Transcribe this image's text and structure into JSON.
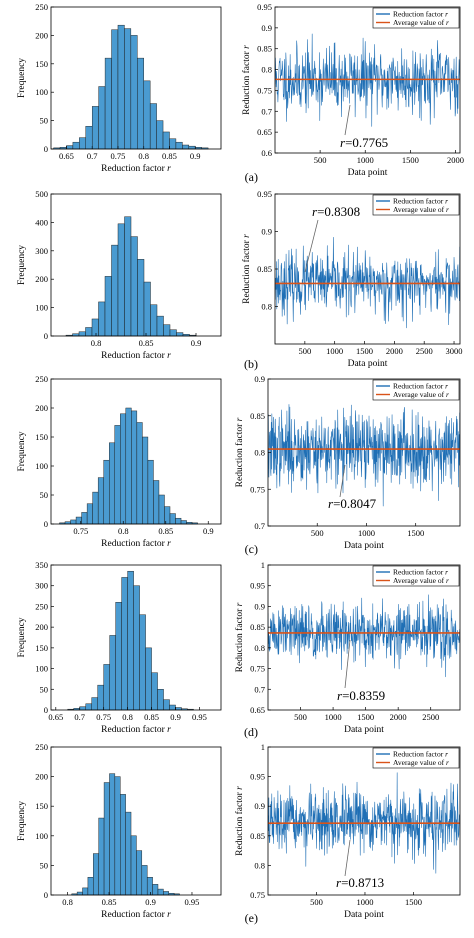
{
  "figure": {
    "hist_xlabel": "Reduction factor r",
    "hist_ylabel": "Frequency",
    "series_xlabel": "Data point",
    "series_ylabel": "Reduction factor r",
    "legend_signal": "Reduction factor r",
    "legend_average": "Average value of r",
    "colors": {
      "bar": "#4a9bd1",
      "signal": "#1f6fb5",
      "average": "#d95319"
    }
  },
  "chart_data": [
    {
      "panel": "(a)",
      "type": "bar",
      "role": "histogram",
      "xlabel": "Reduction factor r",
      "ylabel": "Frequency",
      "xlim": [
        0.62,
        0.95
      ],
      "ylim": [
        0,
        250
      ],
      "xticks": [
        "0.65",
        "0.7",
        "0.75",
        "0.8",
        "0.85",
        "0.9"
      ],
      "yticks": [
        "0",
        "50",
        "100",
        "150",
        "200",
        "250"
      ],
      "bin_start": 0.625,
      "bin_width": 0.0125,
      "values": [
        2,
        3,
        6,
        12,
        20,
        40,
        75,
        110,
        160,
        210,
        218,
        212,
        200,
        160,
        120,
        80,
        50,
        30,
        18,
        12,
        7,
        5,
        3,
        2
      ],
      "grid": false
    },
    {
      "panel": "(a)",
      "type": "line",
      "role": "series",
      "xlabel": "Data point",
      "ylabel": "Reduction factor r",
      "xlim": [
        0,
        2050
      ],
      "ylim": [
        0.6,
        0.95
      ],
      "xticks": [
        "500",
        "1000",
        "1500",
        "2000"
      ],
      "yticks": [
        "0.6",
        "0.65",
        "0.7",
        "0.75",
        "0.8",
        "0.85",
        "0.9",
        "0.95"
      ],
      "n_points": 2050,
      "mean": 0.7765,
      "spread": 0.04,
      "series": [
        {
          "name": "Reduction factor r"
        },
        {
          "name": "Average value of r",
          "value": 0.7765
        }
      ],
      "annotation": "r=0.7765",
      "legend_position": "top-right",
      "grid": false
    },
    {
      "panel": "(b)",
      "type": "bar",
      "role": "histogram",
      "xlabel": "Reduction factor r",
      "ylabel": "Frequency",
      "xlim": [
        0.755,
        0.925
      ],
      "ylim": [
        0,
        500
      ],
      "xticks": [
        "0.8",
        "0.85",
        "0.9"
      ],
      "yticks": [
        "0",
        "100",
        "200",
        "300",
        "400",
        "500"
      ],
      "bin_start": 0.77,
      "bin_width": 0.0065,
      "values": [
        3,
        8,
        15,
        30,
        60,
        120,
        210,
        320,
        395,
        420,
        350,
        270,
        190,
        110,
        70,
        40,
        22,
        12,
        6,
        3
      ],
      "grid": false
    },
    {
      "panel": "(b)",
      "type": "line",
      "role": "series",
      "xlabel": "Data point",
      "ylabel": "Reduction factor r",
      "xlim": [
        0,
        3100
      ],
      "ylim": [
        0.75,
        0.95
      ],
      "xticks": [
        "500",
        "1000",
        "1500",
        "2000",
        "2500",
        "3000"
      ],
      "yticks": [
        "0.8",
        "0.85",
        "0.9",
        "0.95"
      ],
      "n_points": 3100,
      "mean": 0.8308,
      "spread": 0.02,
      "series": [
        {
          "name": "Reduction factor r"
        },
        {
          "name": "Average value of r",
          "value": 0.8308
        }
      ],
      "annotation": "r=0.8308",
      "legend_position": "top-right",
      "grid": false
    },
    {
      "panel": "(c)",
      "type": "bar",
      "role": "histogram",
      "xlabel": "Reduction factor r",
      "ylabel": "Frequency",
      "xlim": [
        0.715,
        0.915
      ],
      "ylim": [
        0,
        250
      ],
      "xticks": [
        "0.75",
        "0.8",
        "0.85",
        "0.9"
      ],
      "yticks": [
        "0",
        "50",
        "100",
        "150",
        "200",
        "250"
      ],
      "bin_start": 0.725,
      "bin_width": 0.0065,
      "values": [
        2,
        4,
        7,
        12,
        20,
        35,
        55,
        80,
        110,
        140,
        170,
        190,
        200,
        195,
        175,
        150,
        110,
        75,
        50,
        30,
        18,
        10,
        6,
        3,
        2
      ],
      "grid": false
    },
    {
      "panel": "(c)",
      "type": "line",
      "role": "series",
      "xlabel": "Data point",
      "ylabel": "Reduction factor r",
      "xlim": [
        0,
        1950
      ],
      "ylim": [
        0.7,
        0.9
      ],
      "xticks": [
        "500",
        "1000",
        "1500"
      ],
      "yticks": [
        "0.7",
        "0.75",
        "0.8",
        "0.85",
        "0.9"
      ],
      "n_points": 1950,
      "mean": 0.8047,
      "spread": 0.025,
      "series": [
        {
          "name": "Reduction factor r"
        },
        {
          "name": "Average value of r",
          "value": 0.8047
        }
      ],
      "annotation": "r=0.8047",
      "legend_position": "top-right",
      "grid": false
    },
    {
      "panel": "(d)",
      "type": "bar",
      "role": "histogram",
      "xlabel": "Reduction factor r",
      "ylabel": "Frequency",
      "xlim": [
        0.64,
        0.995
      ],
      "ylim": [
        0,
        350
      ],
      "xticks": [
        "0.65",
        "0.7",
        "0.75",
        "0.8",
        "0.85",
        "0.9",
        "0.95"
      ],
      "yticks": [
        "0",
        "50",
        "100",
        "150",
        "200",
        "250",
        "300",
        "350"
      ],
      "bin_start": 0.675,
      "bin_width": 0.0125,
      "values": [
        2,
        4,
        8,
        15,
        30,
        60,
        110,
        180,
        260,
        320,
        335,
        300,
        230,
        150,
        90,
        50,
        25,
        12,
        6,
        3,
        2
      ],
      "grid": false
    },
    {
      "panel": "(d)",
      "type": "line",
      "role": "series",
      "xlabel": "Data point",
      "ylabel": "Reduction factor r",
      "xlim": [
        0,
        2950
      ],
      "ylim": [
        0.65,
        1.0
      ],
      "xticks": [
        "500",
        "1000",
        "1500",
        "2000",
        "2500"
      ],
      "yticks": [
        "0.65",
        "0.7",
        "0.75",
        "0.8",
        "0.85",
        "0.9",
        "0.95",
        "1"
      ],
      "n_points": 2950,
      "mean": 0.8359,
      "spread": 0.035,
      "series": [
        {
          "name": "Reduction factor r"
        },
        {
          "name": "Average value of r",
          "value": 0.8359
        }
      ],
      "annotation": "r=0.8359",
      "legend_position": "top-right",
      "grid": false
    },
    {
      "panel": "(e)",
      "type": "bar",
      "role": "histogram",
      "xlabel": "Reduction factor r",
      "ylabel": "Frequency",
      "xlim": [
        0.78,
        0.985
      ],
      "ylim": [
        0,
        250
      ],
      "xticks": [
        "0.8",
        "0.85",
        "0.9",
        "0.95"
      ],
      "yticks": [
        "0",
        "50",
        "100",
        "150",
        "200",
        "250"
      ],
      "bin_start": 0.805,
      "bin_width": 0.0065,
      "values": [
        2,
        5,
        12,
        30,
        70,
        130,
        190,
        205,
        200,
        170,
        140,
        100,
        75,
        50,
        30,
        18,
        10,
        6,
        3,
        2
      ],
      "grid": false
    },
    {
      "panel": "(e)",
      "type": "line",
      "role": "series",
      "xlabel": "Data point",
      "ylabel": "Reduction factor r",
      "xlim": [
        0,
        1980
      ],
      "ylim": [
        0.75,
        1.0
      ],
      "xticks": [
        "500",
        "1000",
        "1500"
      ],
      "yticks": [
        "0.75",
        "0.8",
        "0.85",
        "0.9",
        "0.95",
        "1"
      ],
      "n_points": 1980,
      "mean": 0.8713,
      "spread": 0.025,
      "series": [
        {
          "name": "Reduction factor r"
        },
        {
          "name": "Average value of r",
          "value": 0.8713
        }
      ],
      "annotation": "r=0.8713",
      "legend_position": "top-right",
      "grid": false
    }
  ]
}
